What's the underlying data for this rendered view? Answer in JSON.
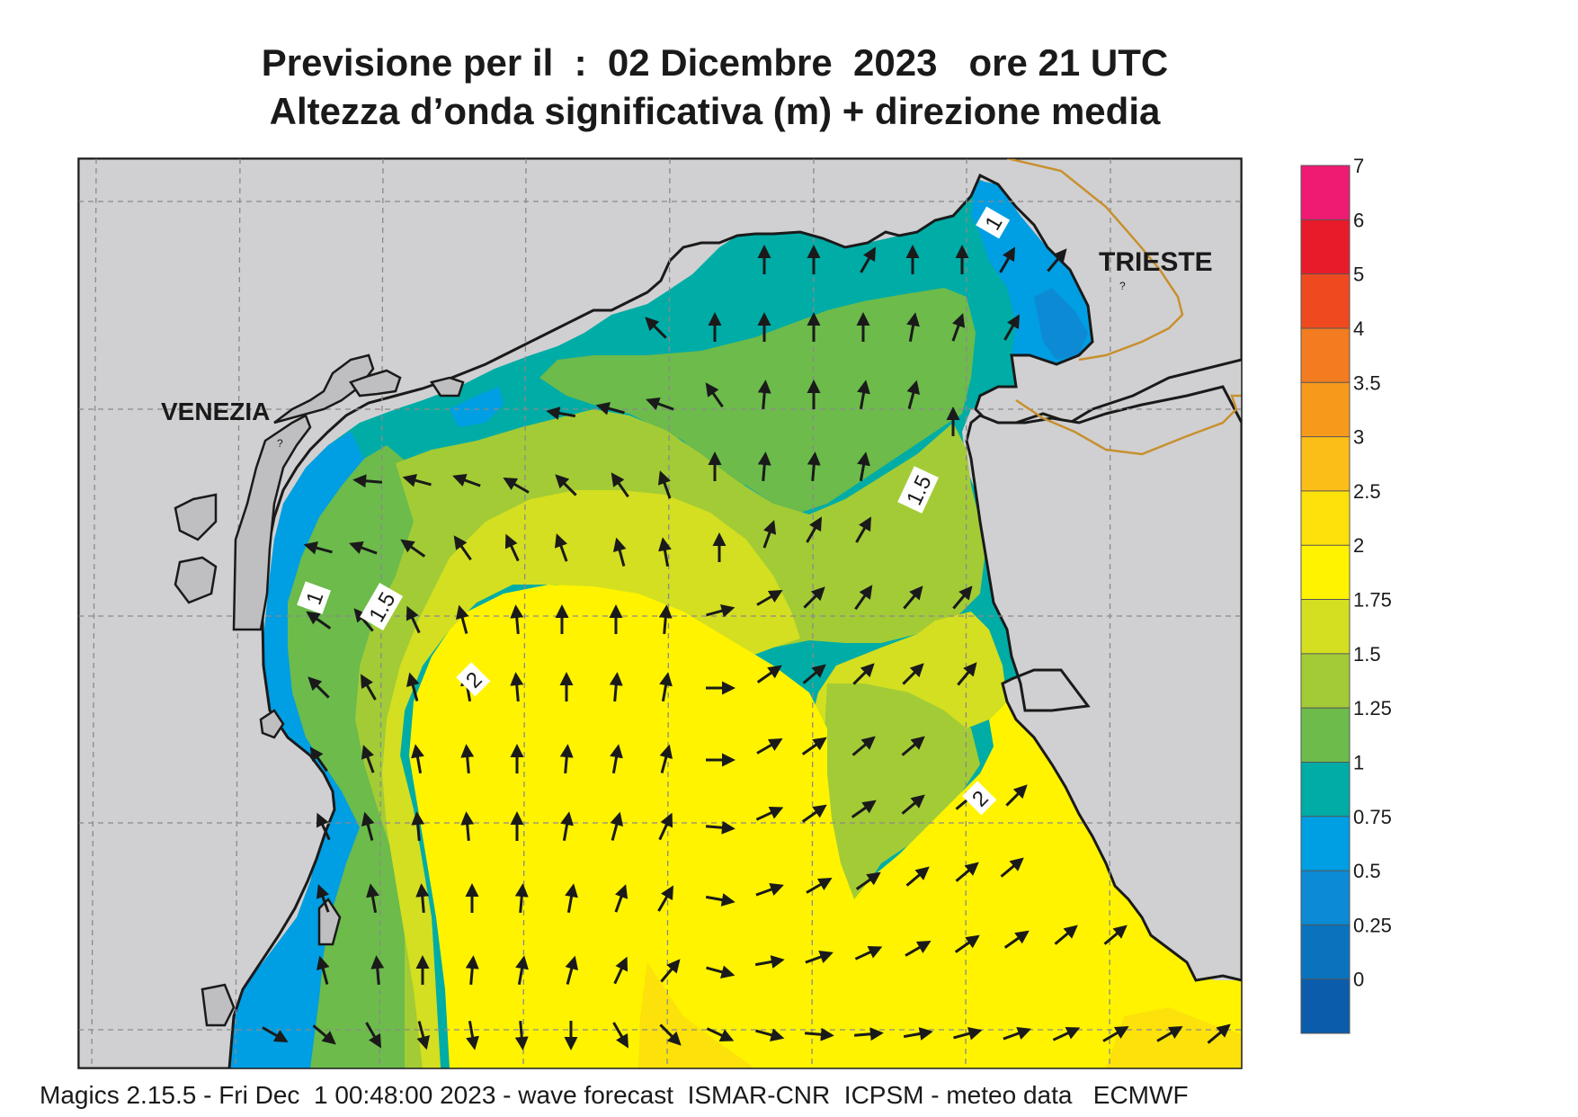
{
  "title": {
    "line1": "Previsione per il  :  02 Dicembre  2023   ore 21 UTC",
    "line2": "Altezza d’onda significativa (m) + direzione media"
  },
  "places": {
    "venezia": "VENEZIA",
    "trieste": "TRIESTE"
  },
  "contour_labels": {
    "c1": "1",
    "c15": "1.5",
    "c2": "2"
  },
  "legend": {
    "levels": [
      "7",
      "6",
      "5",
      "4",
      "3.5",
      "3",
      "2.5",
      "2",
      "1.75",
      "1.5",
      "1.25",
      "1",
      "0.75",
      "0.5",
      "0.25",
      "0"
    ],
    "colors": [
      "#ef1a72",
      "#e81b2b",
      "#ef4a1f",
      "#f27c1f",
      "#f79a1c",
      "#fbbd17",
      "#fde10a",
      "#fff300",
      "#d3df20",
      "#a3cb36",
      "#6cbb4b",
      "#00aca6",
      "#009ee3",
      "#0c8bd4",
      "#0a73be",
      "#0b5dab"
    ]
  },
  "colors": {
    "land": "#d0d0d2",
    "coast": "#1a1a1a",
    "border": "#c8902e",
    "grid": "#8a8a8a"
  },
  "footer": "Magics 2.15.5 - Fri Dec  1 00:48:00 2023 - wave forecast  ISMAR-CNR  ICPSM - meteo data   ECMWF"
}
